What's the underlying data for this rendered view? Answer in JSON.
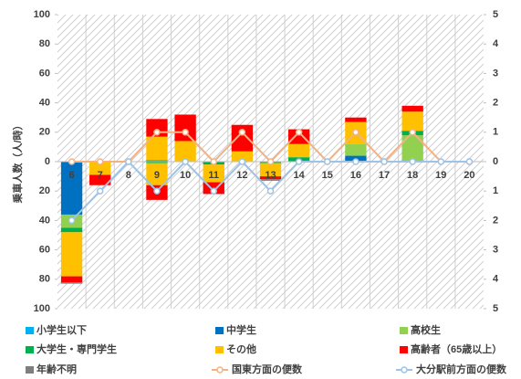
{
  "chart_data": {
    "type": "bar",
    "y_label": "乗車人数（人/時）",
    "categories": [
      "6",
      "7",
      "8",
      "9",
      "10",
      "11",
      "12",
      "13",
      "14",
      "15",
      "16",
      "17",
      "18",
      "19",
      "20"
    ],
    "ylim": [
      -100,
      100
    ],
    "yticks": [
      100,
      80,
      60,
      40,
      20,
      0,
      {
        "value": -20,
        "label": "20"
      },
      {
        "value": -40,
        "label": "40"
      },
      {
        "value": -60,
        "label": "60"
      },
      {
        "value": -80,
        "label": "80"
      },
      {
        "value": -100,
        "label": "100"
      }
    ],
    "y2lim": [
      -5,
      5
    ],
    "y2ticks": [
      5,
      4,
      3,
      2,
      1,
      0,
      {
        "value": -1,
        "label": "1"
      },
      {
        "value": -2,
        "label": "2"
      },
      {
        "value": -3,
        "label": "3"
      },
      {
        "value": -4,
        "label": "4"
      },
      {
        "value": -5,
        "label": "5"
      }
    ],
    "series": [
      {
        "name": "小学生以下",
        "color": "#00b0f0",
        "values": [
          0,
          0,
          0,
          0,
          0,
          0,
          0,
          0,
          0,
          0,
          0,
          0,
          0,
          0,
          0
        ],
        "values_down": [
          0,
          0,
          0,
          0,
          0,
          0,
          0,
          0,
          0,
          0,
          0,
          0,
          0,
          0,
          0
        ]
      },
      {
        "name": "中学生",
        "color": "#0070c0",
        "values": [
          0,
          0,
          0,
          0,
          0,
          0,
          0,
          0,
          0,
          0,
          4,
          0,
          0,
          0,
          0
        ],
        "values_down": [
          -36,
          0,
          0,
          0,
          0,
          0,
          0,
          0,
          0,
          0,
          0,
          0,
          0,
          0,
          0
        ]
      },
      {
        "name": "高校生",
        "color": "#92d050",
        "values": [
          0,
          0,
          0,
          0,
          0,
          0,
          0,
          0,
          0,
          0,
          8,
          0,
          18,
          0,
          0
        ],
        "values_down": [
          -9,
          0,
          0,
          0,
          0,
          0,
          0,
          0,
          0,
          0,
          0,
          0,
          0,
          0,
          0
        ]
      },
      {
        "name": "大学生・専門学生",
        "color": "#00b050",
        "values": [
          0,
          0,
          0,
          1,
          0,
          0,
          0,
          0,
          3,
          0,
          0,
          0,
          3,
          0,
          0
        ],
        "values_down": [
          -3,
          0,
          0,
          -1,
          0,
          -2,
          0,
          -1,
          0,
          0,
          0,
          0,
          0,
          0,
          0
        ]
      },
      {
        "name": "その他",
        "color": "#ffc000",
        "values": [
          0,
          0,
          0,
          16,
          14,
          0,
          7,
          0,
          9,
          0,
          15,
          0,
          13,
          0,
          0
        ],
        "values_down": [
          -30,
          -9,
          0,
          -15,
          0,
          -12,
          0,
          -9,
          0,
          0,
          0,
          0,
          0,
          0,
          0
        ]
      },
      {
        "name": "高齢者（65歳以上）",
        "color": "#ff0000",
        "values": [
          0,
          0,
          0,
          12,
          18,
          0,
          18,
          0,
          10,
          0,
          3,
          0,
          4,
          0,
          0
        ],
        "values_down": [
          -4,
          -7,
          0,
          -10,
          0,
          -8,
          0,
          -2,
          0,
          0,
          0,
          0,
          0,
          0,
          0
        ]
      },
      {
        "name": "年齢不明",
        "color": "#7f7f7f",
        "values": [
          0,
          0,
          0,
          0,
          0,
          0,
          0,
          0,
          0,
          0,
          0,
          0,
          0,
          0,
          0
        ],
        "values_down": [
          -1,
          0,
          0,
          0,
          0,
          0,
          0,
          -1,
          0,
          0,
          0,
          0,
          0,
          0,
          0
        ]
      },
      {
        "name": "国東方面の便数",
        "color": "#f4b183",
        "axis": "y2",
        "values": [
          0,
          0,
          0,
          1,
          1,
          0,
          1,
          0,
          1,
          0,
          1,
          0,
          1,
          0,
          0
        ]
      },
      {
        "name": "大分駅前方面の便数",
        "color": "#9dc3e6",
        "axis": "y2",
        "values": [
          -2,
          -1,
          0,
          -1,
          0,
          -1,
          0,
          -1,
          0,
          0,
          0,
          0,
          0,
          0,
          0
        ]
      }
    ]
  }
}
